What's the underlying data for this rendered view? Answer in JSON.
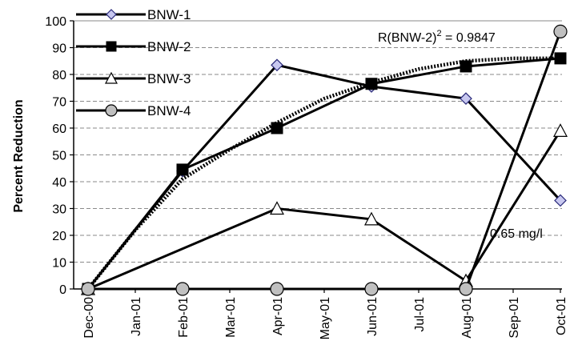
{
  "chart_data": {
    "type": "line",
    "ylabel": "Percent Reduction",
    "xlabel": "",
    "ylim": [
      0,
      100
    ],
    "y_ticks": [
      "0",
      "10",
      "20",
      "30",
      "40",
      "50",
      "60",
      "70",
      "80",
      "90",
      "100"
    ],
    "x_ticks": [
      "Dec-00",
      "Jan-01",
      "Feb-01",
      "Mar-01",
      "Apr-01",
      "May-01",
      "Jun-01",
      "Jul-01",
      "Aug-01",
      "Sep-01",
      "Oct-01"
    ],
    "grid": "horizontal-dashed",
    "legend_position": "top-left",
    "series": [
      {
        "name": "BNW-1",
        "marker": "diamond",
        "marker_fill": "#c8c8f0",
        "x": [
          "Dec-00",
          "Feb-01",
          "Apr-01",
          "Jun-01",
          "Aug-01",
          "Oct-01"
        ],
        "values": [
          0,
          44,
          83.5,
          75.5,
          71,
          33
        ]
      },
      {
        "name": "BNW-2",
        "marker": "square",
        "marker_fill": "#000000",
        "x": [
          "Dec-00",
          "Feb-01",
          "Apr-01",
          "Jun-01",
          "Aug-01",
          "Oct-01"
        ],
        "values": [
          0,
          44.5,
          60,
          76.5,
          83,
          86
        ]
      },
      {
        "name": "BNW-3",
        "marker": "triangle",
        "marker_fill": "#ffffff",
        "x": [
          "Dec-00",
          "Apr-01",
          "Jun-01",
          "Aug-01",
          "Oct-01"
        ],
        "values": [
          0,
          30,
          26,
          3,
          59
        ]
      },
      {
        "name": "BNW-4",
        "marker": "circle",
        "marker_fill": "#c0c0c0",
        "x": [
          "Dec-00",
          "Feb-01",
          "Apr-01",
          "Jun-01",
          "Aug-01",
          "Oct-01"
        ],
        "values": [
          0,
          0,
          0,
          0,
          0,
          96
        ]
      }
    ],
    "trendline": {
      "style": "dotted",
      "x": [
        "Dec-00",
        "Jan-01",
        "Feb-01",
        "Mar-01",
        "Apr-01",
        "May-01",
        "Jun-01",
        "Jul-01",
        "Aug-01",
        "Sep-01",
        "Oct-01"
      ],
      "values": [
        0,
        22,
        41,
        52,
        62,
        71,
        77,
        82,
        85,
        86,
        86
      ]
    },
    "annotations": {
      "r2_prefix": "R(BNW-2)",
      "r2_sup": "2",
      "r2_suffix": " = 0.9847",
      "level_note": "0.65 mg/l"
    }
  }
}
